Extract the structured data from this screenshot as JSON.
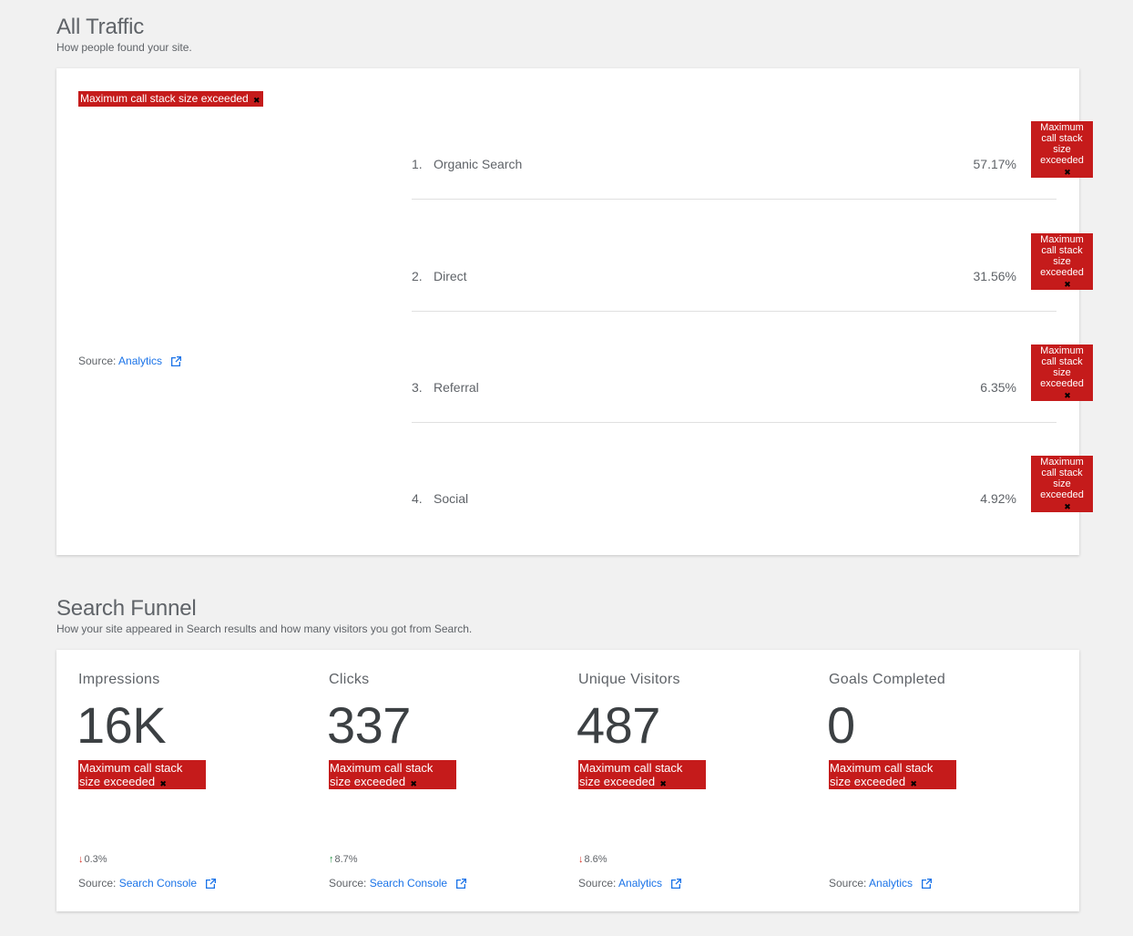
{
  "error_text": "Maximum call stack size exceeded",
  "traffic": {
    "title": "All Traffic",
    "subtitle": "How people found your site.",
    "source_label": "Source: ",
    "source_link": "Analytics",
    "rows": [
      {
        "rank": "1.",
        "name": "Organic Search",
        "pct": "57.17%"
      },
      {
        "rank": "2.",
        "name": "Direct",
        "pct": "31.56%"
      },
      {
        "rank": "3.",
        "name": "Referral",
        "pct": "6.35%"
      },
      {
        "rank": "4.",
        "name": "Social",
        "pct": "4.92%"
      }
    ]
  },
  "funnel": {
    "title": "Search Funnel",
    "subtitle": "How your site appeared in Search results and how many visitors you got from Search.",
    "metrics": [
      {
        "label": "Impressions",
        "value": "16K",
        "change": "0.3%",
        "direction": "down",
        "source_label": "Source: ",
        "source_link": "Search Console"
      },
      {
        "label": "Clicks",
        "value": "337",
        "change": "8.7%",
        "direction": "up",
        "source_label": "Source: ",
        "source_link": "Search Console"
      },
      {
        "label": "Unique Visitors",
        "value": "487",
        "change": "8.6%",
        "direction": "down",
        "source_label": "Source: ",
        "source_link": "Analytics"
      },
      {
        "label": "Goals Completed",
        "value": "0",
        "change": "",
        "direction": "",
        "source_label": "Source: ",
        "source_link": "Analytics"
      }
    ]
  },
  "colors": {
    "error_bg": "#c51b1b",
    "link": "#1a73e8",
    "down": "#d93025",
    "up": "#1e8e3e"
  },
  "icons": {
    "external": "external-link-icon",
    "down": "arrow-down-icon",
    "up": "arrow-up-icon",
    "close": "close-icon"
  }
}
